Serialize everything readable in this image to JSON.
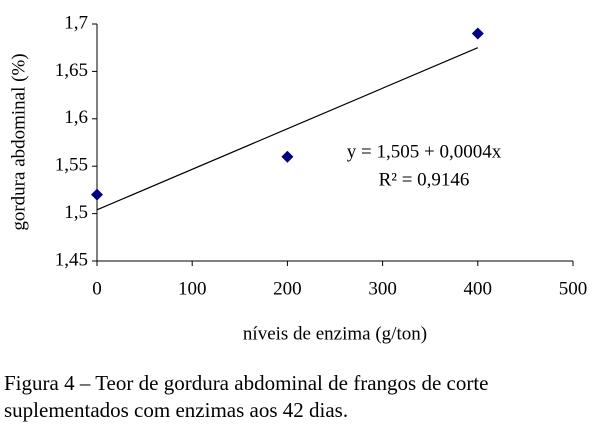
{
  "chart_data": {
    "type": "scatter",
    "y_label": "gordura abdominal (%)",
    "x_label": "níveis de enzima (g/ton)",
    "series": [
      {
        "color": "#00007f",
        "x": [
          0,
          200,
          400
        ],
        "values": [
          1.52,
          1.56,
          1.69
        ]
      }
    ],
    "trendline": {
      "color": "#000000",
      "x": [
        0,
        400
      ],
      "values": [
        1.504,
        1.675
      ]
    },
    "annotations": [
      "y = 1,505 + 0,0004x",
      "R² = 0,9146"
    ],
    "xlim": [
      0,
      500
    ],
    "xticks": [
      0,
      100,
      200,
      300,
      400,
      500
    ],
    "ylim": [
      1.45,
      1.7
    ],
    "yticks": [
      {
        "value": 1.45,
        "label": "1,45"
      },
      {
        "value": 1.5,
        "label": "1,5"
      },
      {
        "value": 1.55,
        "label": "1,55"
      },
      {
        "value": 1.6,
        "label": "1,6"
      },
      {
        "value": 1.65,
        "label": "1,65"
      },
      {
        "value": 1.7,
        "label": "1,7"
      }
    ],
    "grid": false
  },
  "caption": [
    "Figura 4 – Teor de gordura abdominal de frangos de corte",
    "suplementados com enzimas aos 42 dias."
  ]
}
